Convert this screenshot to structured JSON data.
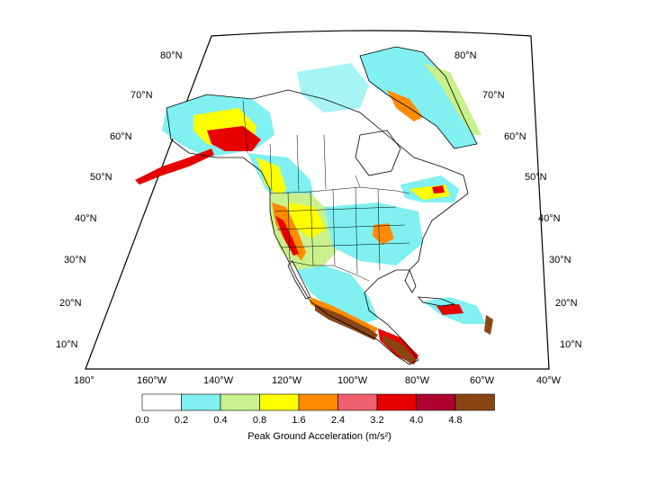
{
  "map": {
    "latitude_labels_left": [
      "80°N",
      "70°N",
      "60°N",
      "50°N",
      "40°N",
      "30°N",
      "20°N",
      "10°N"
    ],
    "latitude_labels_right": [
      "80°N",
      "70°N",
      "60°N",
      "50°N",
      "40°N",
      "30°N",
      "20°N",
      "10°N"
    ],
    "longitude_labels": [
      "180°",
      "160°W",
      "140°W",
      "120°W",
      "100°W",
      "80°W",
      "60°W",
      "40°W"
    ]
  },
  "legend": {
    "title": "Peak Ground Acceleration (m/s²)",
    "tick_labels": [
      "0.0",
      "0.2",
      "0.4",
      "0.8",
      "1.6",
      "2.4",
      "3.2",
      "4.0",
      "4.8"
    ],
    "colors": [
      "#ffffff",
      "#80f0f0",
      "#c8f08c",
      "#ffff00",
      "#ff8c00",
      "#f06070",
      "#e80000",
      "#b00030",
      "#8b4513"
    ]
  },
  "colors": {
    "land_white": "#ffffff",
    "low_hazard": "#80f0f0",
    "moderate_hazard": "#c8f08c",
    "yellow_hazard": "#ffff00",
    "orange_hazard": "#ff8c00",
    "red_hazard": "#e80000",
    "brown_hazard": "#8b4513",
    "outline": "#000000"
  }
}
